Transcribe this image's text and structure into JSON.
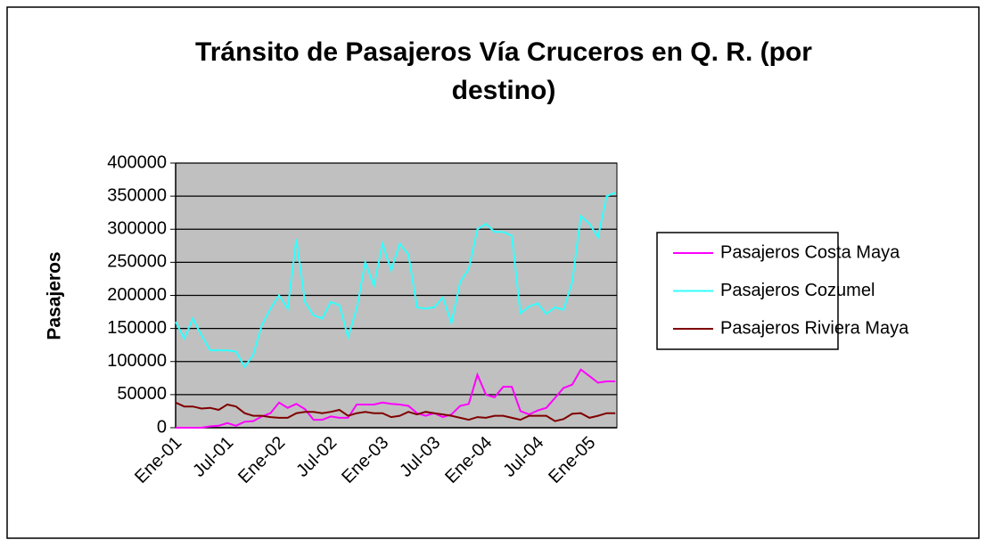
{
  "chart_data": {
    "type": "line",
    "title": "Tránsito de Pasajeros Vía Cruceros en Q. R. (por destino)",
    "y_label": "Pasajeros",
    "categories": [
      "Ene-01",
      null,
      null,
      null,
      null,
      null,
      "Jul-01",
      null,
      null,
      null,
      null,
      null,
      "Ene-02",
      null,
      null,
      null,
      null,
      null,
      "Jul-02",
      null,
      null,
      null,
      null,
      null,
      "Ene-03",
      null,
      null,
      null,
      null,
      null,
      "Jul-03",
      null,
      null,
      null,
      null,
      null,
      "Ene-04",
      null,
      null,
      null,
      null,
      null,
      "Jul-04",
      null,
      null,
      null,
      null,
      null,
      "Ene-05",
      null,
      null,
      null
    ],
    "series": [
      {
        "name": "Pasajeros Costa Maya",
        "color": "#ff00ff",
        "values": [
          0,
          0,
          0,
          0,
          2000,
          3000,
          7000,
          3000,
          9000,
          10000,
          17000,
          22000,
          38000,
          30000,
          36000,
          28000,
          12000,
          12000,
          17000,
          15000,
          15000,
          35000,
          35000,
          35000,
          38000,
          36000,
          35000,
          33000,
          22000,
          18000,
          22000,
          16000,
          20000,
          33000,
          36000,
          80000,
          50000,
          46000,
          62000,
          62000,
          25000,
          20000,
          26000,
          30000,
          45000,
          60000,
          65000,
          88000,
          78000,
          68000,
          70000,
          70000
        ]
      },
      {
        "name": "Pasajeros Cozumel",
        "color": "#33ffff",
        "values": [
          160000,
          135000,
          165000,
          140000,
          117000,
          117000,
          117000,
          115000,
          92000,
          110000,
          155000,
          180000,
          200000,
          180000,
          285000,
          190000,
          170000,
          165000,
          190000,
          185000,
          137000,
          180000,
          250000,
          215000,
          278000,
          238000,
          278000,
          262000,
          182000,
          180000,
          182000,
          197000,
          158000,
          220000,
          240000,
          300000,
          308000,
          296000,
          296000,
          290000,
          173000,
          183000,
          188000,
          172000,
          182000,
          178000,
          220000,
          320000,
          308000,
          288000,
          350000,
          355000
        ]
      },
      {
        "name": "Pasajeros Riviera Maya",
        "color": "#800000",
        "values": [
          38000,
          32000,
          32000,
          29000,
          30000,
          27000,
          35000,
          32000,
          22000,
          18000,
          18000,
          16000,
          15000,
          15000,
          22000,
          24000,
          24000,
          22000,
          24000,
          27000,
          18000,
          22000,
          24000,
          22000,
          22000,
          16000,
          18000,
          24000,
          20000,
          24000,
          22000,
          20000,
          18000,
          15000,
          12000,
          16000,
          15000,
          18000,
          18000,
          15000,
          12000,
          18000,
          18000,
          18000,
          10000,
          13000,
          21000,
          22000,
          15000,
          18000,
          22000,
          22000
        ]
      }
    ],
    "ylim": [
      0,
      400000
    ],
    "yticks": [
      0,
      50000,
      100000,
      150000,
      200000,
      250000,
      300000,
      350000,
      400000
    ],
    "grid": true,
    "plot_background": "#c0c0c0",
    "legend": "right"
  }
}
